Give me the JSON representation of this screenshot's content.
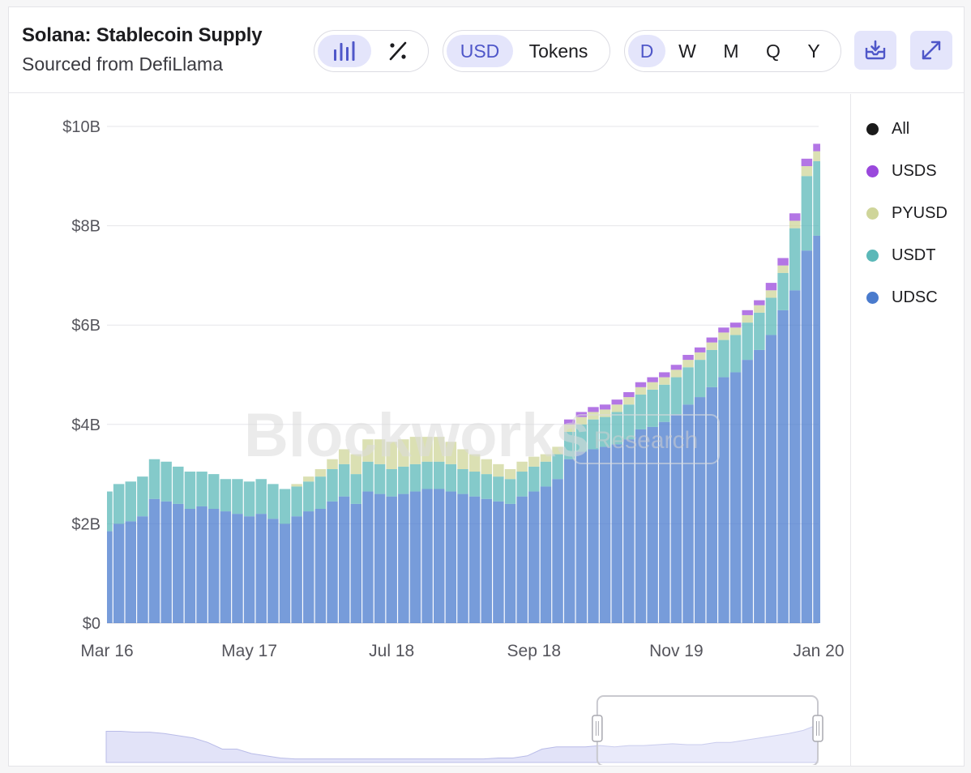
{
  "header": {
    "title": "Solana: Stablecoin Supply",
    "subtitle": "Sourced from DefiLlama"
  },
  "toolbar": {
    "chart_icon": "bar-chart-icon",
    "percent_icon": "percent-icon",
    "unit_options": [
      "USD",
      "Tokens"
    ],
    "unit_selected": "USD",
    "period_options": [
      "D",
      "W",
      "M",
      "Q",
      "Y"
    ],
    "period_selected": "D",
    "download_icon": "download-icon",
    "expand_icon": "expand-icon"
  },
  "watermark": {
    "brand": "Blockworks",
    "tag": "Research"
  },
  "colors": {
    "accent": "#4f57c9",
    "accent_bg": "#e4e5fb",
    "All": "#1a1a1a",
    "USDS": "#9a48dc",
    "PYUSD": "#cfd59a",
    "USDT": "#5bb8b8",
    "UDSC": "#4a7bcd"
  },
  "chart_data": {
    "type": "area",
    "stacked": true,
    "title": "Solana: Stablecoin Supply",
    "x_ticks": [
      "Mar 16",
      "May 17",
      "Jul 18",
      "Sep 18",
      "Nov 19",
      "Jan 20"
    ],
    "y_ticks": [
      "$0",
      "$2B",
      "$4B",
      "$6B",
      "$8B",
      "$10B"
    ],
    "ylim": [
      0,
      10
    ],
    "y_unit": "$B",
    "legend": [
      "All",
      "USDS",
      "PYUSD",
      "USDT",
      "UDSC"
    ],
    "x": [
      0,
      5,
      10,
      15,
      20,
      25,
      30,
      35,
      40,
      45,
      50,
      55,
      60,
      65,
      70,
      75,
      80,
      85,
      90,
      95,
      100,
      105,
      110,
      115,
      120,
      125,
      130,
      135,
      140,
      145,
      150,
      155,
      160,
      165,
      170,
      175,
      180,
      185,
      190,
      195,
      200,
      205,
      210,
      215,
      220,
      225,
      230,
      235,
      240,
      245,
      250,
      255,
      260,
      265,
      270,
      275,
      280,
      285,
      290,
      295,
      300
    ],
    "series": [
      {
        "name": "UDSC",
        "values": [
          1.85,
          2.0,
          2.05,
          2.15,
          2.5,
          2.45,
          2.4,
          2.3,
          2.35,
          2.3,
          2.25,
          2.2,
          2.15,
          2.2,
          2.1,
          2.0,
          2.15,
          2.25,
          2.3,
          2.45,
          2.55,
          2.4,
          2.65,
          2.6,
          2.55,
          2.6,
          2.65,
          2.7,
          2.7,
          2.65,
          2.6,
          2.55,
          2.5,
          2.45,
          2.4,
          2.55,
          2.65,
          2.75,
          2.9,
          3.3,
          3.45,
          3.5,
          3.55,
          3.6,
          3.7,
          3.9,
          3.95,
          4.05,
          4.2,
          4.4,
          4.55,
          4.75,
          4.95,
          5.05,
          5.3,
          5.5,
          5.8,
          6.3,
          6.7,
          7.5,
          7.8
        ]
      },
      {
        "name": "USDT",
        "values": [
          0.8,
          0.8,
          0.8,
          0.8,
          0.8,
          0.8,
          0.75,
          0.75,
          0.7,
          0.7,
          0.65,
          0.7,
          0.7,
          0.7,
          0.7,
          0.7,
          0.6,
          0.6,
          0.65,
          0.65,
          0.65,
          0.6,
          0.6,
          0.6,
          0.55,
          0.55,
          0.55,
          0.55,
          0.55,
          0.55,
          0.5,
          0.5,
          0.5,
          0.5,
          0.5,
          0.5,
          0.5,
          0.5,
          0.5,
          0.55,
          0.55,
          0.6,
          0.6,
          0.65,
          0.7,
          0.7,
          0.75,
          0.75,
          0.75,
          0.75,
          0.75,
          0.75,
          0.75,
          0.75,
          0.75,
          0.75,
          0.75,
          0.75,
          1.25,
          1.5,
          1.5
        ]
      },
      {
        "name": "PYUSD",
        "values": [
          0,
          0,
          0,
          0,
          0,
          0,
          0,
          0,
          0,
          0,
          0,
          0,
          0,
          0,
          0,
          0,
          0.05,
          0.1,
          0.15,
          0.2,
          0.3,
          0.4,
          0.45,
          0.5,
          0.55,
          0.55,
          0.55,
          0.5,
          0.5,
          0.45,
          0.4,
          0.35,
          0.3,
          0.25,
          0.2,
          0.2,
          0.2,
          0.15,
          0.15,
          0.15,
          0.15,
          0.15,
          0.15,
          0.15,
          0.15,
          0.15,
          0.15,
          0.15,
          0.15,
          0.15,
          0.15,
          0.15,
          0.15,
          0.15,
          0.15,
          0.15,
          0.15,
          0.15,
          0.15,
          0.2,
          0.2
        ]
      },
      {
        "name": "USDS",
        "values": [
          0,
          0,
          0,
          0,
          0,
          0,
          0,
          0,
          0,
          0,
          0,
          0,
          0,
          0,
          0,
          0,
          0,
          0,
          0,
          0,
          0,
          0,
          0,
          0,
          0,
          0,
          0,
          0,
          0,
          0,
          0,
          0,
          0,
          0,
          0,
          0,
          0,
          0,
          0,
          0.1,
          0.1,
          0.1,
          0.1,
          0.1,
          0.1,
          0.1,
          0.1,
          0.1,
          0.1,
          0.1,
          0.1,
          0.1,
          0.1,
          0.1,
          0.1,
          0.1,
          0.15,
          0.15,
          0.15,
          0.15,
          0.15
        ]
      }
    ],
    "navigator": {
      "values": [
        0.7,
        0.7,
        0.68,
        0.68,
        0.65,
        0.6,
        0.55,
        0.45,
        0.3,
        0.3,
        0.2,
        0.15,
        0.1,
        0.08,
        0.08,
        0.08,
        0.08,
        0.08,
        0.08,
        0.08,
        0.08,
        0.08,
        0.08,
        0.08,
        0.08,
        0.08,
        0.08,
        0.1,
        0.1,
        0.15,
        0.3,
        0.35,
        0.35,
        0.35,
        0.38,
        0.35,
        0.38,
        0.38,
        0.4,
        0.42,
        0.4,
        0.4,
        0.45,
        0.45,
        0.5,
        0.55,
        0.6,
        0.65,
        0.72,
        0.85
      ],
      "window_start": 0.69,
      "window_end": 1.0
    }
  }
}
